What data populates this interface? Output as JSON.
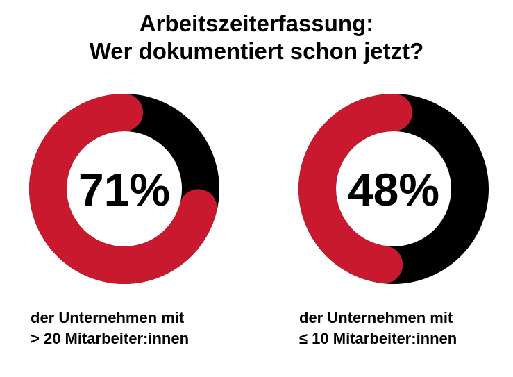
{
  "title": {
    "line1": "Arbeitszeiterfassung:",
    "line2": "Wer dokumentiert schon jetzt?"
  },
  "colors": {
    "accent": "#c8192e",
    "rest": "#000000",
    "background": "#ffffff"
  },
  "chart_data": [
    {
      "type": "pie",
      "values": [
        71,
        29
      ],
      "value_label": "71%",
      "caption_line1": "der Unternehmen mit",
      "caption_line2": "> 20 Mitarbeiter:innen"
    },
    {
      "type": "pie",
      "values": [
        48,
        52
      ],
      "value_label": "48%",
      "caption_line1": "der Unternehmen mit",
      "caption_line2": "≤ 10 Mitarbeiter:innen"
    }
  ]
}
